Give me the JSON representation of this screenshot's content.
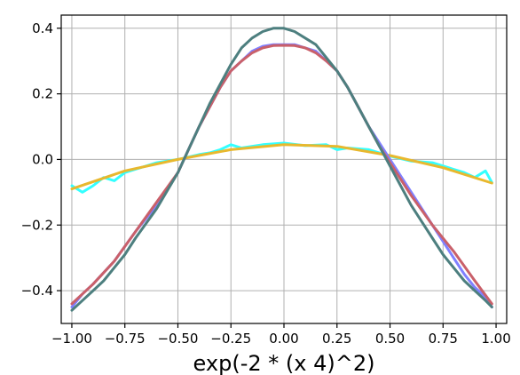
{
  "chart_data": {
    "type": "line",
    "title": "",
    "xlabel": "exp(-2 * (x  4)^2)",
    "ylabel": "",
    "xlim": [
      -1.05,
      1.05
    ],
    "ylim": [
      -0.5,
      0.44
    ],
    "grid": true,
    "legend": "none",
    "xticks": [
      -1.0,
      -0.75,
      -0.5,
      -0.25,
      0.0,
      0.25,
      0.5,
      0.75,
      1.0
    ],
    "xtick_labels": [
      "−1.00",
      "−0.75",
      "−0.50",
      "−0.25",
      "0.00",
      "0.25",
      "0.50",
      "0.75",
      "1.00"
    ],
    "yticks": [
      -0.4,
      -0.2,
      0.0,
      0.2,
      0.4
    ],
    "ytick_labels": [
      "−0.4",
      "−0.2",
      "0.0",
      "0.2",
      "0.4"
    ],
    "series": [
      {
        "color": "#33ffff",
        "x": [
          -1.0,
          -0.95,
          -0.9,
          -0.85,
          -0.8,
          -0.75,
          -0.7,
          -0.6,
          -0.5,
          -0.4,
          -0.35,
          -0.3,
          -0.25,
          -0.2,
          -0.1,
          0.0,
          0.1,
          0.2,
          0.25,
          0.3,
          0.4,
          0.5,
          0.6,
          0.7,
          0.8,
          0.85,
          0.9,
          0.95,
          0.98
        ],
        "y": [
          -0.08,
          -0.1,
          -0.08,
          -0.055,
          -0.065,
          -0.04,
          -0.03,
          -0.01,
          0.0,
          0.015,
          0.02,
          0.03,
          0.045,
          0.035,
          0.045,
          0.05,
          0.042,
          0.045,
          0.03,
          0.035,
          0.03,
          0.01,
          -0.005,
          -0.01,
          -0.03,
          -0.04,
          -0.055,
          -0.035,
          -0.07
        ]
      },
      {
        "color": "#e8b82e",
        "x": [
          -1.0,
          -0.75,
          -0.5,
          -0.25,
          0.0,
          0.25,
          0.5,
          0.75,
          0.98
        ],
        "y": [
          -0.09,
          -0.035,
          0.0,
          0.03,
          0.045,
          0.04,
          0.012,
          -0.025,
          -0.072
        ]
      },
      {
        "color": "#8080ff",
        "x": [
          -1.0,
          -0.95,
          -0.9,
          -0.8,
          -0.7,
          -0.6,
          -0.5,
          -0.45,
          -0.4,
          -0.35,
          -0.3,
          -0.25,
          -0.2,
          -0.15,
          -0.1,
          -0.05,
          0.0,
          0.05,
          0.1,
          0.15,
          0.2,
          0.25,
          0.3,
          0.35,
          0.4,
          0.45,
          0.5,
          0.6,
          0.7,
          0.75,
          0.8,
          0.85,
          0.9,
          0.95,
          0.98
        ],
        "y": [
          -0.45,
          -0.41,
          -0.38,
          -0.31,
          -0.22,
          -0.14,
          -0.04,
          0.03,
          0.1,
          0.16,
          0.22,
          0.27,
          0.3,
          0.33,
          0.345,
          0.35,
          0.35,
          0.35,
          0.34,
          0.33,
          0.3,
          0.27,
          0.22,
          0.16,
          0.1,
          0.05,
          0.0,
          -0.1,
          -0.2,
          -0.25,
          -0.3,
          -0.35,
          -0.39,
          -0.42,
          -0.45
        ]
      },
      {
        "color": "#c9606a",
        "x": [
          -1.0,
          -0.9,
          -0.8,
          -0.7,
          -0.6,
          -0.5,
          -0.45,
          -0.4,
          -0.35,
          -0.3,
          -0.25,
          -0.2,
          -0.15,
          -0.1,
          -0.05,
          0.0,
          0.05,
          0.1,
          0.15,
          0.2,
          0.25,
          0.3,
          0.35,
          0.4,
          0.45,
          0.5,
          0.6,
          0.7,
          0.8,
          0.9,
          0.98
        ],
        "y": [
          -0.44,
          -0.38,
          -0.31,
          -0.22,
          -0.13,
          -0.04,
          0.03,
          0.1,
          0.16,
          0.22,
          0.27,
          0.3,
          0.325,
          0.34,
          0.347,
          0.348,
          0.347,
          0.34,
          0.325,
          0.3,
          0.27,
          0.22,
          0.16,
          0.1,
          0.04,
          -0.01,
          -0.11,
          -0.2,
          -0.28,
          -0.37,
          -0.44
        ]
      },
      {
        "color": "#4d7f7f",
        "x": [
          -1.0,
          -0.95,
          -0.9,
          -0.85,
          -0.8,
          -0.75,
          -0.7,
          -0.6,
          -0.5,
          -0.45,
          -0.4,
          -0.35,
          -0.3,
          -0.25,
          -0.2,
          -0.15,
          -0.1,
          -0.05,
          0.0,
          0.05,
          0.1,
          0.15,
          0.2,
          0.25,
          0.3,
          0.35,
          0.4,
          0.45,
          0.5,
          0.55,
          0.6,
          0.7,
          0.75,
          0.8,
          0.85,
          0.9,
          0.95,
          0.98
        ],
        "y": [
          -0.46,
          -0.43,
          -0.4,
          -0.37,
          -0.33,
          -0.29,
          -0.24,
          -0.15,
          -0.04,
          0.03,
          0.1,
          0.17,
          0.23,
          0.29,
          0.34,
          0.37,
          0.39,
          0.4,
          0.4,
          0.39,
          0.37,
          0.35,
          0.31,
          0.27,
          0.22,
          0.16,
          0.1,
          0.04,
          -0.02,
          -0.08,
          -0.14,
          -0.24,
          -0.29,
          -0.33,
          -0.37,
          -0.4,
          -0.43,
          -0.45
        ]
      }
    ]
  }
}
